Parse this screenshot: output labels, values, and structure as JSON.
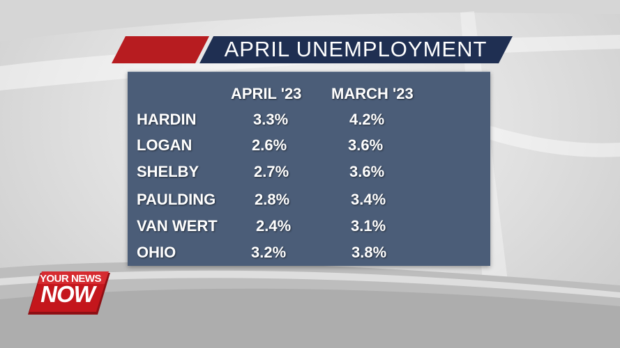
{
  "title": "APRIL UNEMPLOYMENT",
  "table": {
    "headers": [
      "APRIL '23",
      "MARCH '23"
    ],
    "rows": [
      {
        "name": "HARDIN",
        "april": "3.3%",
        "march": "4.2%"
      },
      {
        "name": "LOGAN",
        "april": "2.6%",
        "march": "3.6%"
      },
      {
        "name": "SHELBY",
        "april": "2.7%",
        "march": "3.6%"
      },
      {
        "name": "PAULDING",
        "april": "2.8%",
        "march": "3.4%"
      },
      {
        "name": "VAN WERT",
        "april": "2.4%",
        "march": "3.1%"
      },
      {
        "name": "OHIO",
        "april": "3.2%",
        "march": "3.8%"
      }
    ]
  },
  "logo": {
    "line1": "YOUR NEWS",
    "line2": "NOW"
  },
  "colors": {
    "panel": "#4b5d78",
    "banner_navy": "#1f2f52",
    "banner_red": "#b71c20",
    "logo_red": "#c4161c"
  }
}
